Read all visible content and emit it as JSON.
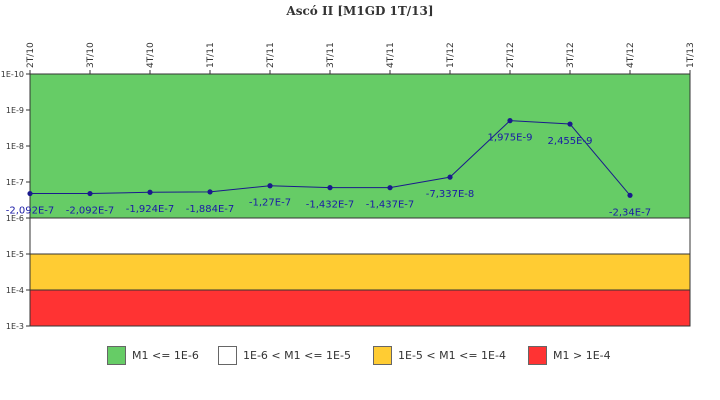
{
  "chart_data": {
    "type": "line",
    "title": "Ascó II [M1GD 1T/13]",
    "x": [
      "2T/10",
      "3T/10",
      "4T/10",
      "1T/11",
      "2T/11",
      "3T/11",
      "4T/11",
      "1T/12",
      "2T/12",
      "3T/12",
      "4T/12",
      "1T/13"
    ],
    "y_scale": "log",
    "ylim": [
      1e-10,
      0.001
    ],
    "y_ticks": [
      "1E-10",
      "1E-9",
      "1E-8",
      "1E-7",
      "1E-6",
      "1E-5",
      "1E-4",
      "1E-3"
    ],
    "y_inverted": true,
    "series": [
      {
        "values": [
          -2.092e-07,
          -2.092e-07,
          -1.924e-07,
          -1.884e-07,
          -1.27e-07,
          -1.432e-07,
          -1.437e-07,
          -7.337e-08,
          1.975e-09,
          2.455e-09,
          -2.34e-07,
          null
        ],
        "labels": [
          "-2,092E-7",
          "-2,092E-7",
          "-1,924E-7",
          "-1,884E-7",
          "-1,27E-7",
          "-1,432E-7",
          "-1,437E-7",
          "-7,337E-8",
          "1,975E-9",
          "2,455E-9",
          "-2,34E-7",
          ""
        ],
        "color": "#1a1a8c"
      }
    ],
    "bands": [
      {
        "from": 1e-10,
        "to": 1e-06,
        "color": "#66cc66",
        "label": "M1 <= 1E-6"
      },
      {
        "from": 1e-06,
        "to": 1e-05,
        "color": "#ffffff",
        "label": "1E-6 < M1 <= 1E-5"
      },
      {
        "from": 1e-05,
        "to": 0.0001,
        "color": "#ffcc33",
        "label": "1E-5 < M1 <= 1E-4"
      },
      {
        "from": 0.0001,
        "to": 0.001,
        "color": "#ff3333",
        "label": "M1 > 1E-4"
      }
    ],
    "legend_position": "bottom"
  }
}
